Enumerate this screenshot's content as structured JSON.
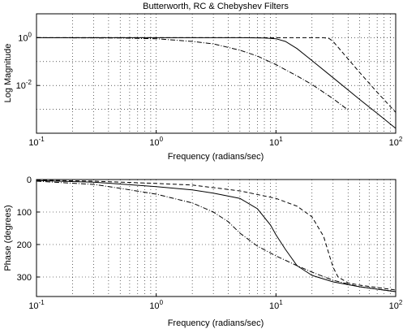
{
  "chart_data": [
    {
      "type": "line",
      "title": "Butterworth, RC & Chebyshev Filters",
      "xlabel": "Frequency (radians/sec)",
      "ylabel": "Log Magnitude",
      "xscale": "log",
      "yscale": "log",
      "xlim": [
        0.1,
        100
      ],
      "ylim": [
        0.0001,
        10
      ],
      "xticks": [
        {
          "value": 0.1,
          "base": "10",
          "exp": "-1"
        },
        {
          "value": 1,
          "base": "10",
          "exp": "0"
        },
        {
          "value": 10,
          "base": "10",
          "exp": "1"
        },
        {
          "value": 100,
          "base": "10",
          "exp": "2"
        }
      ],
      "yticks": [
        {
          "value": 1,
          "base": "10",
          "exp": "0"
        },
        {
          "value": 0.01,
          "base": "10",
          "exp": "-2"
        }
      ],
      "grid": true,
      "series": [
        {
          "style": "solid",
          "x": [
            0.1,
            1,
            5,
            8,
            10,
            12,
            15,
            20,
            30,
            50,
            70,
            100
          ],
          "y": [
            1,
            1,
            1,
            0.98,
            0.9,
            0.7,
            0.35,
            0.11,
            0.021,
            0.0026,
            0.00068,
            0.00016
          ]
        },
        {
          "style": "dashed",
          "x": [
            0.1,
            1,
            10,
            20,
            25,
            28,
            30,
            33,
            40,
            50,
            70,
            100
          ],
          "y": [
            1,
            1,
            1,
            1,
            1,
            0.9,
            0.7,
            0.4,
            0.13,
            0.035,
            0.0052,
            0.00075
          ]
        },
        {
          "style": "dashdot",
          "x": [
            0.1,
            0.5,
            1,
            2,
            3,
            5,
            7,
            10,
            15,
            20,
            30,
            40
          ],
          "y": [
            1,
            0.97,
            0.9,
            0.7,
            0.55,
            0.3,
            0.17,
            0.075,
            0.025,
            0.011,
            0.0028,
            0.00095
          ]
        }
      ]
    },
    {
      "type": "line",
      "title": "",
      "xlabel": "Frequency (radians/sec)",
      "ylabel": "Phase (degrees)",
      "xscale": "log",
      "xlim": [
        0.1,
        100
      ],
      "ylim": [
        0,
        360
      ],
      "yinverted": true,
      "xticks": [
        {
          "value": 0.1,
          "base": "10",
          "exp": "-1"
        },
        {
          "value": 1,
          "base": "10",
          "exp": "0"
        },
        {
          "value": 10,
          "base": "10",
          "exp": "1"
        },
        {
          "value": 100,
          "base": "10",
          "exp": "2"
        }
      ],
      "yticks": [
        {
          "value": 0,
          "label": "0"
        },
        {
          "value": 100,
          "label": "100"
        },
        {
          "value": 200,
          "label": "200"
        },
        {
          "value": 300,
          "label": "300"
        }
      ],
      "grid": true,
      "series": [
        {
          "style": "solid",
          "x": [
            0.1,
            0.3,
            1,
            2,
            3,
            5,
            7,
            9,
            10,
            12,
            15,
            20,
            30,
            50,
            100
          ],
          "y": [
            3,
            8,
            22,
            32,
            42,
            58,
            90,
            140,
            170,
            215,
            265,
            295,
            315,
            330,
            345
          ]
        },
        {
          "style": "dashed",
          "x": [
            0.1,
            0.3,
            1,
            2,
            5,
            10,
            15,
            20,
            25,
            28,
            30,
            33,
            40,
            50,
            100
          ],
          "y": [
            2,
            5,
            12,
            17,
            35,
            58,
            82,
            115,
            175,
            235,
            270,
            300,
            318,
            325,
            340
          ]
        },
        {
          "style": "dashdot",
          "x": [
            0.1,
            0.3,
            0.5,
            1,
            2,
            3,
            4,
            5,
            7,
            10,
            15,
            20,
            30,
            50,
            100
          ],
          "y": [
            5,
            15,
            27,
            45,
            72,
            100,
            130,
            165,
            205,
            235,
            265,
            285,
            310,
            330,
            345
          ]
        }
      ]
    }
  ]
}
